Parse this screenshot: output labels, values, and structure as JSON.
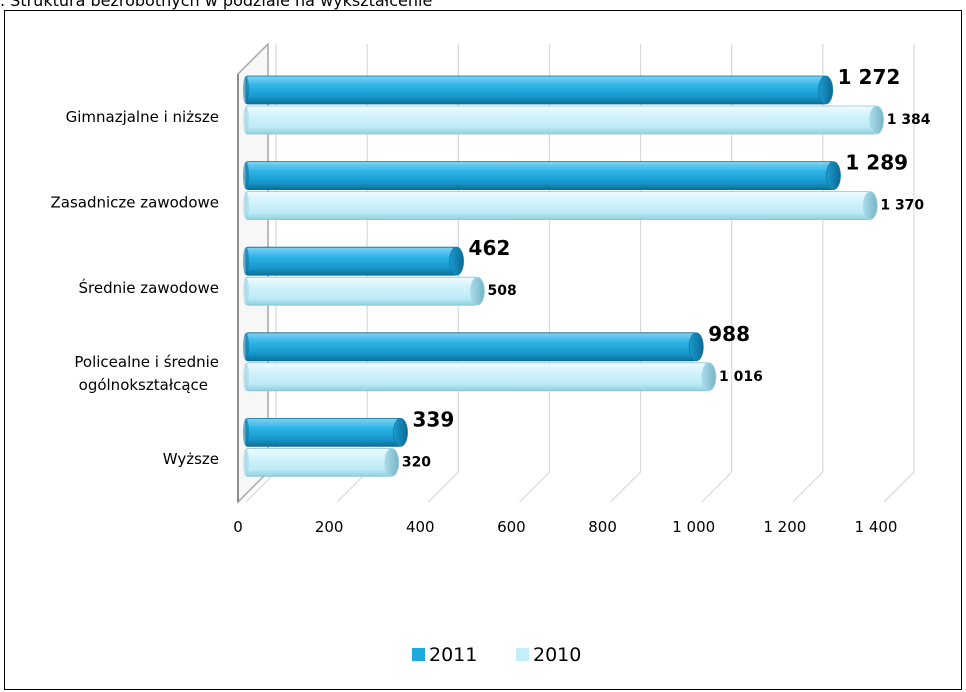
{
  "caption": ". Struktura bezrobotnych w podziale na wykształcenie",
  "chart_data": {
    "type": "bar",
    "orientation": "horizontal",
    "categories": [
      "Gimnazjalne i niższe",
      "Zasadnicze zawodowe",
      "Średnie zawodowe",
      "Policealne i średnie ogólnokształcące",
      "Wyższe"
    ],
    "category_lines": [
      [
        "Gimnazjalne i niższe"
      ],
      [
        "Zasadnicze zawodowe"
      ],
      [
        "Średnie zawodowe"
      ],
      [
        "Policealne i średnie",
        "ogólnokształcące"
      ],
      [
        "Wyższe"
      ]
    ],
    "series": [
      {
        "name": "2011",
        "values": [
          1272,
          1289,
          462,
          988,
          339
        ],
        "labels": [
          "1 272",
          "1 289",
          "462",
          "988",
          "339"
        ],
        "color": "#1fa9df"
      },
      {
        "name": "2010",
        "values": [
          1384,
          1370,
          508,
          1016,
          320
        ],
        "labels": [
          "1 384",
          "1 370",
          "508",
          "1 016",
          "320"
        ],
        "color": "#c4eef8"
      }
    ],
    "xlim": [
      0,
      1400
    ],
    "xticks": [
      0,
      200,
      400,
      600,
      800,
      1000,
      1200,
      1400
    ],
    "xtick_labels": [
      "0",
      "200",
      "400",
      "600",
      "800",
      "1 000",
      "1 200",
      "1 400"
    ],
    "grid": true,
    "legend_position": "bottom"
  }
}
